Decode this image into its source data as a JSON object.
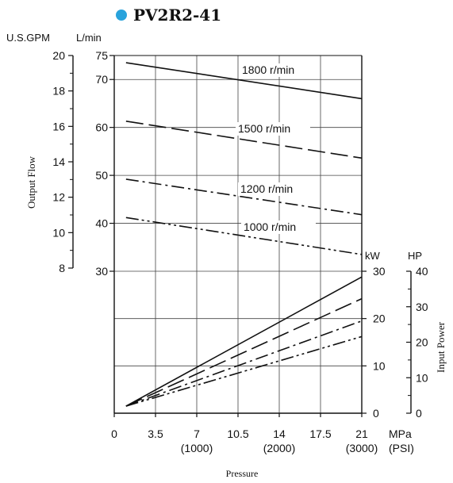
{
  "title": "PV2R2-41",
  "title_dot_color": "#29a3dc",
  "chart_data": {
    "type": "line",
    "title": "PV2R2-41",
    "x_axis": {
      "label": "Pressure",
      "unit": "MPa",
      "unit_secondary": "(PSI)",
      "range": [
        0,
        21
      ],
      "ticks": [
        0,
        3.5,
        7,
        10.5,
        14,
        17.5,
        21
      ],
      "tick_labels": [
        "0",
        "3.5",
        "7",
        "10.5",
        "14",
        "17.5",
        "21"
      ],
      "secondary_ticks": [
        7,
        14,
        21
      ],
      "secondary_tick_labels": [
        "(1000)",
        "(2000)",
        "(3000)"
      ]
    },
    "flow_axis": {
      "label": "Output Flow",
      "unit": "L/min",
      "ticks": [
        30,
        40,
        50,
        60,
        70,
        75
      ],
      "tick_labels": [
        "30",
        "40",
        "50",
        "60",
        "70",
        "75"
      ],
      "gpm_unit": "U.S.GPM",
      "gpm_ticks": [
        8,
        10,
        12,
        14,
        16,
        18,
        20
      ],
      "gpm_tick_labels": [
        "8",
        "10",
        "12",
        "14",
        "16",
        "18",
        "20"
      ]
    },
    "power_axis": {
      "label": "Input Power",
      "unit_kw": "kW",
      "kw_ticks": [
        0,
        10,
        20,
        30
      ],
      "kw_tick_labels": [
        "0",
        "10",
        "20",
        "30"
      ],
      "unit_hp": "HP",
      "hp_ticks": [
        0,
        10,
        20,
        30,
        40
      ],
      "hp_tick_labels": [
        "0",
        "10",
        "20",
        "30",
        "40"
      ]
    },
    "flow_series": [
      {
        "name": "1800 r/min",
        "dash": "solid",
        "x": [
          1,
          21
        ],
        "y": [
          73.5,
          66
        ]
      },
      {
        "name": "1500 r/min",
        "dash": "long",
        "x": [
          1,
          21
        ],
        "y": [
          61.3,
          53.6
        ]
      },
      {
        "name": "1200 r/min",
        "dash": "dashdot",
        "x": [
          1,
          21
        ],
        "y": [
          49.2,
          41.8
        ]
      },
      {
        "name": "1000 r/min",
        "dash": "dashdotdot",
        "x": [
          1,
          21
        ],
        "y": [
          41.2,
          33.5
        ]
      }
    ],
    "power_series": [
      {
        "rpm": "1800 r/min",
        "dash": "solid",
        "x": [
          1,
          21
        ],
        "kw": [
          1.5,
          28.8
        ]
      },
      {
        "rpm": "1500 r/min",
        "dash": "long",
        "x": [
          1,
          21
        ],
        "kw": [
          1.5,
          24.2
        ]
      },
      {
        "rpm": "1200 r/min",
        "dash": "dashdot",
        "x": [
          1,
          21
        ],
        "kw": [
          1.5,
          19.5
        ]
      },
      {
        "rpm": "1000 r/min",
        "dash": "dashdotdot",
        "x": [
          1,
          21
        ],
        "kw": [
          1.5,
          16.2
        ]
      }
    ],
    "grid": true
  }
}
